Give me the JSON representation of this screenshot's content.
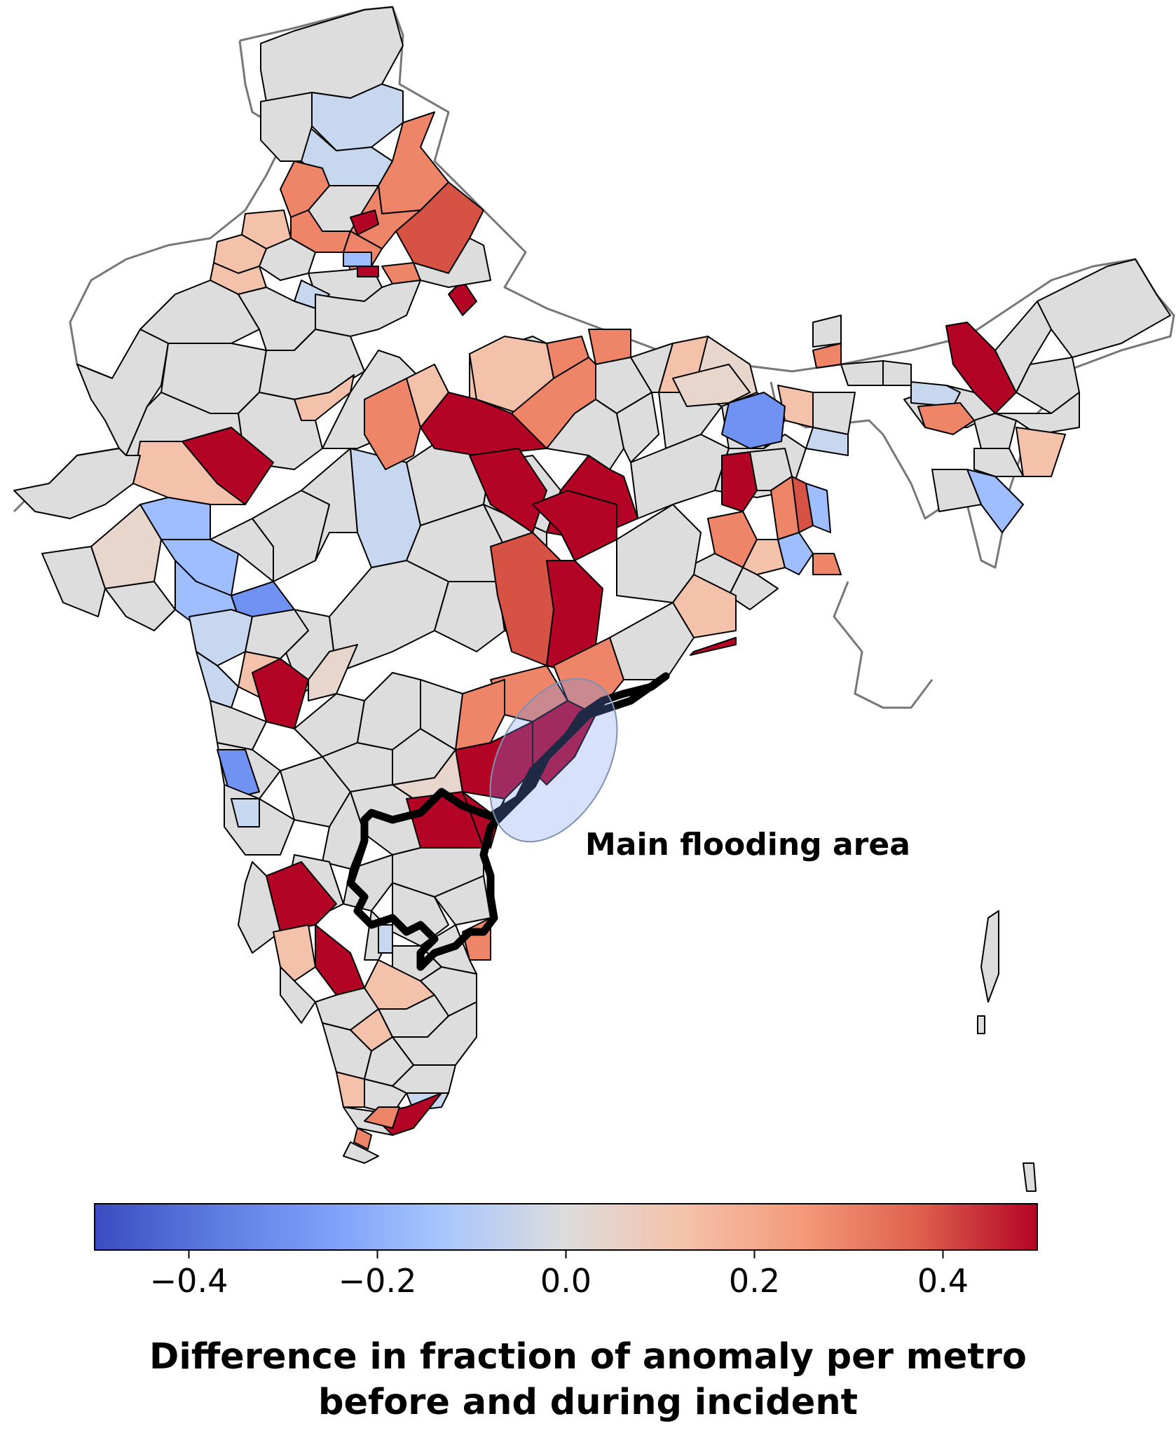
{
  "figure": {
    "annotation": "Main flooding area",
    "colorbar": {
      "colormap": "coolwarm",
      "min": -0.5,
      "max": 0.5,
      "ticks": [
        {
          "value": -0.4,
          "label": "−0.4"
        },
        {
          "value": -0.2,
          "label": "−0.2"
        },
        {
          "value": 0.0,
          "label": "0.0"
        },
        {
          "value": 0.2,
          "label": "0.2"
        },
        {
          "value": 0.4,
          "label": "0.4"
        }
      ],
      "title_line1": "Difference in fraction of anomaly per metro",
      "title_line2": "before and during incident"
    }
  },
  "colors": {
    "neutral": "#dddddd",
    "strong_positive": "#b40426",
    "positive": "#d65244",
    "mild_positive": "#ee8468",
    "light_positive": "#f4c2aa",
    "faint_positive": "#e8d6cc",
    "strong_negative": "#3b4cc0",
    "negative": "#6f92f3",
    "mild_negative": "#9ebeff",
    "light_negative": "#c7d7f0",
    "flood_highlight": "#6f92f3"
  }
}
